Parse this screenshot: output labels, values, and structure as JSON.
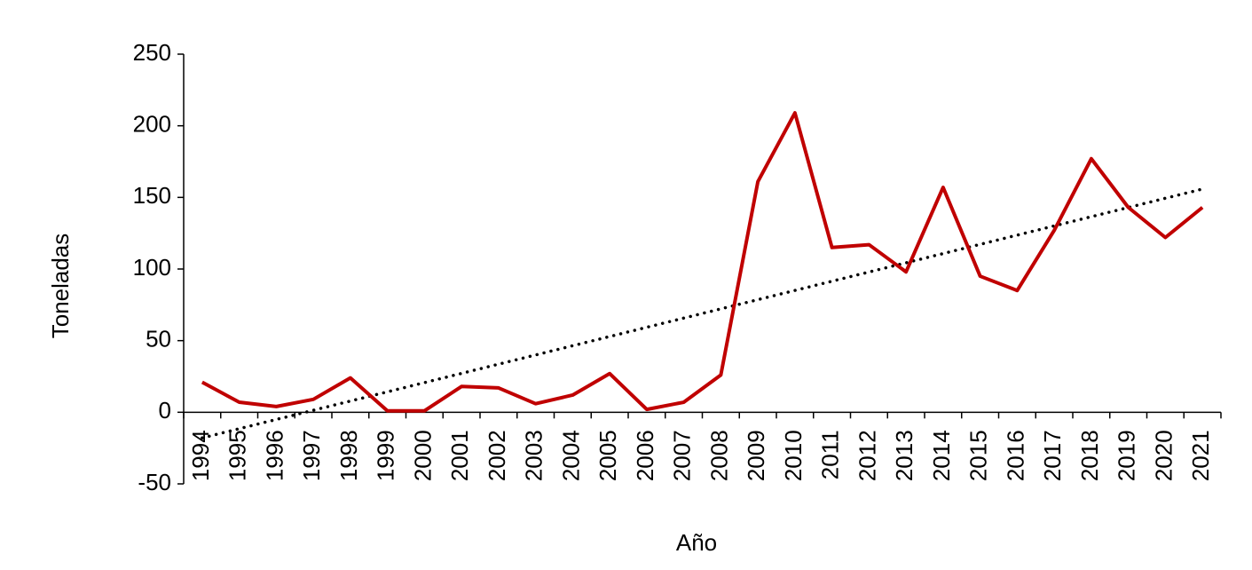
{
  "chart_data": {
    "type": "line",
    "x_label": "Año",
    "y_label": "Toneladas",
    "categories": [
      "1994",
      "1995",
      "1996",
      "1997",
      "1998",
      "1999",
      "2000",
      "2001",
      "2002",
      "2003",
      "2004",
      "2005",
      "2006",
      "2007",
      "2008",
      "2009",
      "2010",
      "2011",
      "2012",
      "2013",
      "2014",
      "2015",
      "2016",
      "2017",
      "2018",
      "2019",
      "2020",
      "2021"
    ],
    "series": [
      {
        "color": "#c00000",
        "values": [
          21,
          7,
          4,
          9,
          24,
          1,
          1,
          18,
          17,
          6,
          12,
          27,
          2,
          7,
          26,
          161,
          209,
          115,
          117,
          98,
          157,
          95,
          85,
          127,
          177,
          143,
          122,
          143
        ]
      }
    ],
    "trendline": "linear",
    "trendline_color": "#000000",
    "ylim": [
      -50,
      250
    ],
    "yticks": [
      -50,
      0,
      50,
      100,
      150,
      200,
      250
    ]
  }
}
